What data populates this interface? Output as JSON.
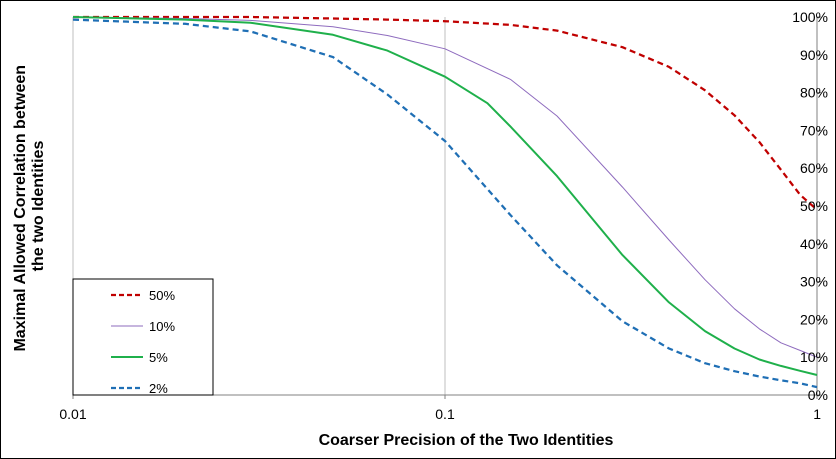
{
  "chart_data": {
    "type": "line",
    "xlabel": "Coarser Precision of the Two Identities",
    "ylabel_lines": [
      "Maximal Allowed Correlation between",
      "the two Identities"
    ],
    "x_scale": "log",
    "xlim": [
      0.01,
      1
    ],
    "x_ticks": [
      0.01,
      0.1,
      1
    ],
    "x_tick_labels": [
      "0.01",
      "0.1",
      "1"
    ],
    "ylim": [
      0,
      100
    ],
    "y_ticks": [
      0,
      10,
      20,
      30,
      40,
      50,
      60,
      70,
      80,
      90,
      100
    ],
    "y_tick_labels": [
      "0%",
      "10%",
      "20%",
      "30%",
      "40%",
      "50%",
      "60%",
      "70%",
      "80%",
      "90%",
      "100%"
    ],
    "y_axis_side": "right",
    "grid": "vertical",
    "legend_position": "bottom-left",
    "series": [
      {
        "name": "50%",
        "color": "#C00000",
        "style": "dashed",
        "x": [
          0.01,
          0.02,
          0.03,
          0.05,
          0.07,
          0.1,
          0.15,
          0.2,
          0.3,
          0.4,
          0.5,
          0.6,
          0.7,
          0.8,
          0.9,
          1.0
        ],
        "y": [
          100,
          100,
          100,
          99.6,
          99.3,
          98.9,
          97.9,
          96.4,
          92,
          86.8,
          80.6,
          74,
          66.9,
          59.6,
          53,
          49
        ]
      },
      {
        "name": "10%",
        "color": "#8E6BBE",
        "style": "solid",
        "x": [
          0.01,
          0.02,
          0.03,
          0.05,
          0.07,
          0.1,
          0.15,
          0.2,
          0.3,
          0.4,
          0.5,
          0.6,
          0.7,
          0.8,
          0.9,
          1.0
        ],
        "y": [
          100,
          99.6,
          99.1,
          97.4,
          95.1,
          91.6,
          83.5,
          73.8,
          55,
          41,
          30.5,
          22.8,
          17.5,
          13.8,
          11.8,
          10
        ]
      },
      {
        "name": "5%",
        "color": "#1FB04B",
        "style": "solid",
        "x": [
          0.01,
          0.02,
          0.03,
          0.05,
          0.07,
          0.1,
          0.13,
          0.15,
          0.2,
          0.3,
          0.4,
          0.5,
          0.6,
          0.7,
          0.8,
          0.9,
          1.0
        ],
        "y": [
          100,
          99.3,
          98.5,
          95.3,
          91.1,
          84.2,
          77.2,
          71,
          57.9,
          37,
          24.5,
          16.9,
          12.3,
          9.4,
          7.7,
          6.4,
          5.3
        ]
      },
      {
        "name": "2%",
        "color": "#1F6FB5",
        "style": "dashed",
        "x": [
          0.01,
          0.02,
          0.03,
          0.05,
          0.07,
          0.1,
          0.15,
          0.2,
          0.3,
          0.4,
          0.5,
          0.6,
          0.7,
          0.8,
          0.9,
          1.0
        ],
        "y": [
          99.3,
          98.2,
          96.2,
          89.4,
          79.5,
          67.2,
          47.6,
          34.3,
          19.5,
          12.3,
          8.4,
          6.3,
          4.9,
          3.9,
          3.1,
          2.1
        ]
      }
    ]
  }
}
